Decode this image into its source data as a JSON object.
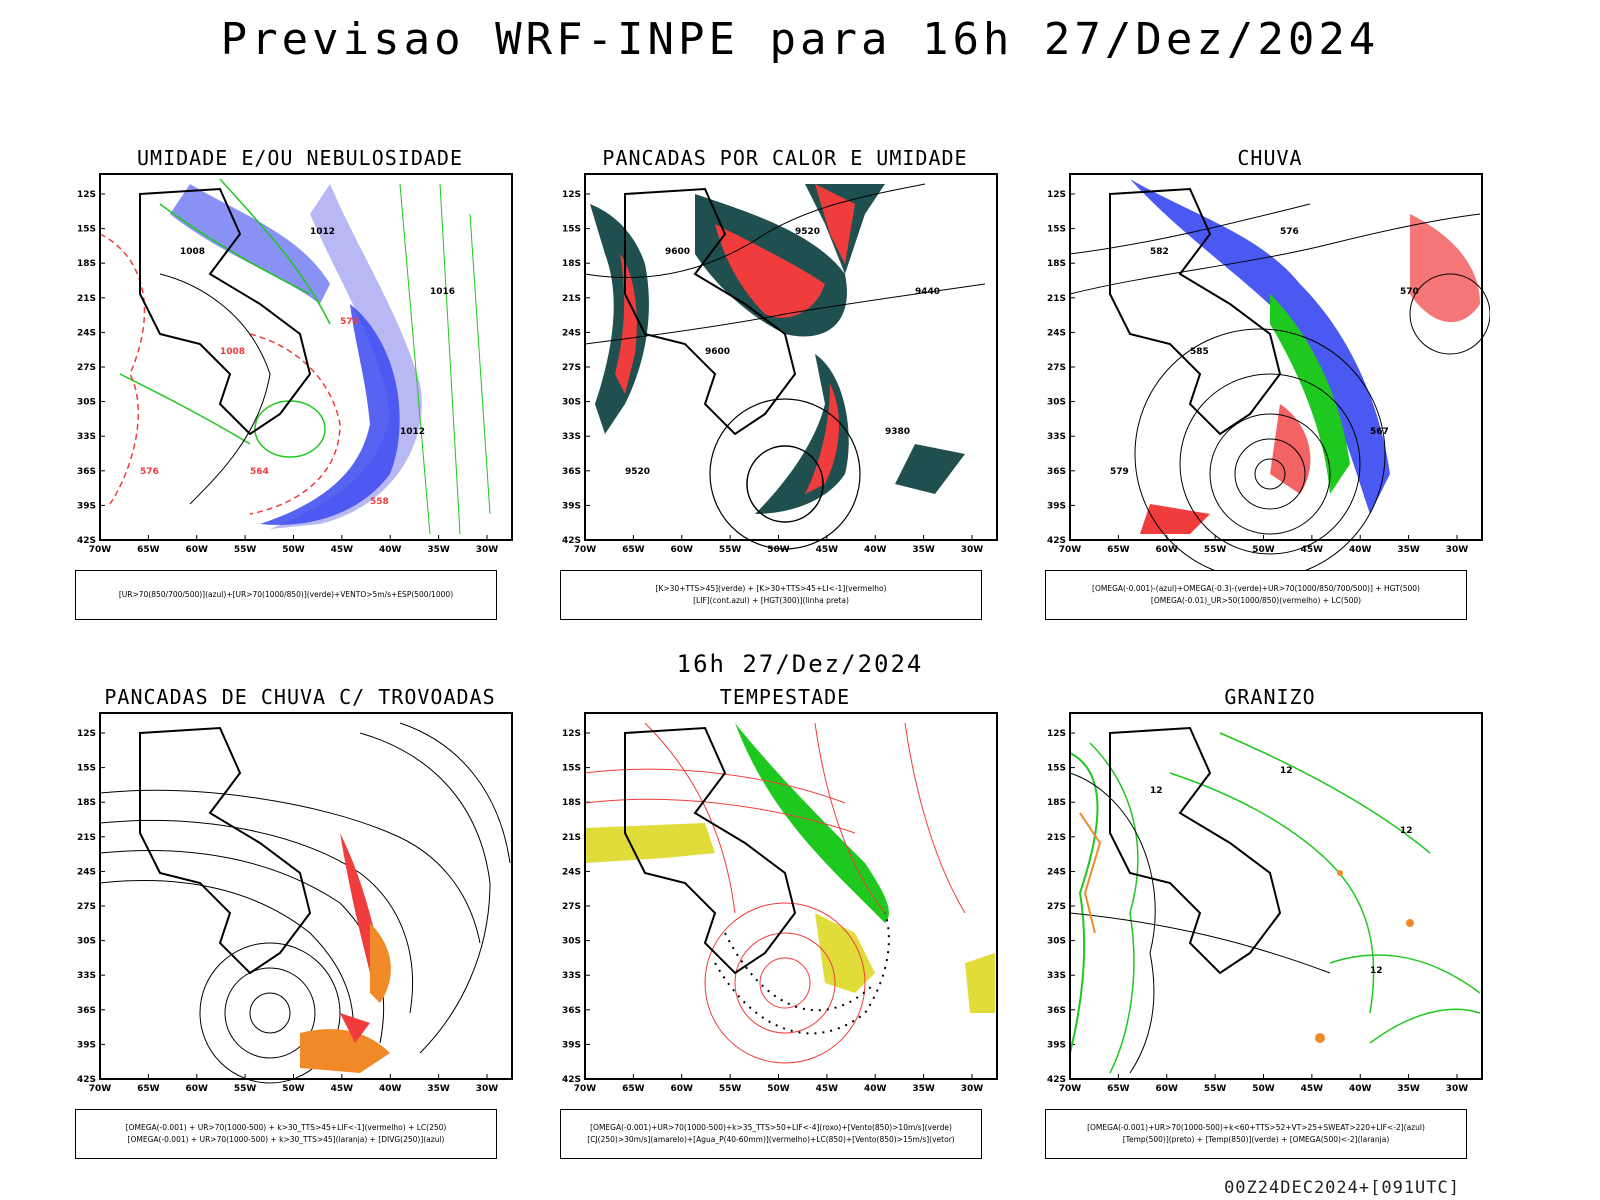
{
  "title": "Previsao WRF-INPE  para 16h 27/Dez/2024",
  "mid_date": "16h 27/Dez/2024",
  "footer": "00Z24DEC2024+[091UTC]",
  "lat_labels": [
    "12S",
    "15S",
    "18S",
    "21S",
    "24S",
    "27S",
    "30S",
    "33S",
    "36S",
    "39S",
    "42S"
  ],
  "lon_labels": [
    "70W",
    "65W",
    "60W",
    "55W",
    "50W",
    "45W",
    "40W",
    "35W",
    "30W"
  ],
  "panels": [
    {
      "title": "UMIDADE E/OU NEBULOSIDADE",
      "legend": [
        "[UR>70(850/700/500)](azul)+[UR>70(1000/850)](verde)+VENTO>5m/s+ESP(500/1000)"
      ],
      "labels": [
        "1008",
        "1012",
        "1016",
        "1012",
        "1008",
        "576",
        "570",
        "564",
        "558"
      ]
    },
    {
      "title": "PANCADAS POR CALOR E UMIDADE",
      "legend": [
        "[K>30+TTS>45](verde) + [K>30+TTS>45+LI<-1](vermelho)",
        "[LIF](cont.azul) + [HGT(300)](linha preta)"
      ],
      "labels": [
        "9600",
        "9520",
        "9440",
        "9380",
        "9600",
        "9520"
      ]
    },
    {
      "title": "CHUVA",
      "legend": [
        "[OMEGA(-0.001)-(azul)+OMEGA(-0.3)-(verde)+UR>70(1000/850/700/500)] + HGT(500)",
        "[OMEGA(-0.01)_UR>50(1000/850)(vermelho) + LC(500)"
      ],
      "labels": [
        "582",
        "576",
        "570",
        "567",
        "585",
        "579"
      ]
    },
    {
      "title": "PANCADAS DE CHUVA C/ TROVOADAS",
      "legend": [
        "[OMEGA(-0.001) + UR>70(1000-500) + k>30_TTS>45+LIF<-1](vermelho) + LC(250)",
        "[OMEGA(-0.001) + UR>70(1000-500) + k>30_TTS>45](laranja) + [DIVG(250)](azul)"
      ],
      "labels": []
    },
    {
      "title": "TEMPESTADE",
      "legend": [
        "[OMEGA(-0.001)+UR>70(1000-500)+k>35_TTS>50+LIF<-4](roxo)+[Vento(850)>10m/s](verde)",
        "[CJ(250)>30m/s](amarelo)+[Agua_P(40-60mm)](vermelho)+LC(850)+[Vento(850)>15m/s](vetor)"
      ],
      "labels": []
    },
    {
      "title": "GRANIZO",
      "legend": [
        "[OMEGA(-0.001)+UR>70(1000-500)+k<60+TTS>52+VT>25+SWEAT>220+LIF<-2](azul)",
        "[Temp(500)](preto) + [Temp(850)](verde) + [OMEGA(500)<-2](laranja)"
      ],
      "labels": [
        "12",
        "12",
        "12",
        "12"
      ]
    }
  ],
  "colors": {
    "blue": "#2a3cf0",
    "lightblue": "#b8b8f4",
    "green": "#1ec81e",
    "red": "#f03c3c",
    "darkteal": "#1f4f4f",
    "yellow": "#e0dc3a",
    "orange": "#f08a28"
  }
}
